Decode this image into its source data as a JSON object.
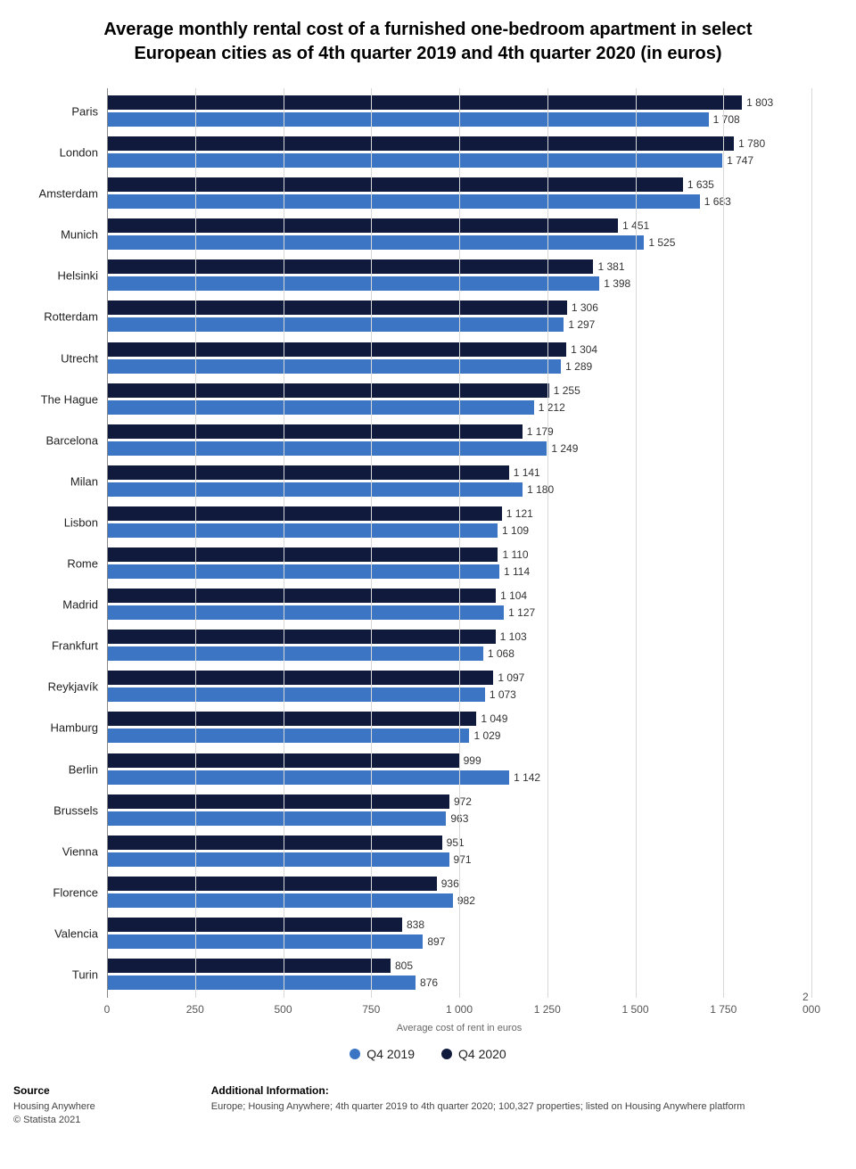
{
  "title": "Average monthly rental cost of a furnished one-bedroom apartment in select European cities as of 4th quarter 2019 and 4th quarter 2020 (in euros)",
  "chart": {
    "type": "bar",
    "orientation": "horizontal",
    "x_axis_title": "Average cost of rent in euros",
    "x_max": 2000,
    "x_ticks": [
      0,
      250,
      500,
      750,
      1000,
      1250,
      1500,
      1750,
      2000
    ],
    "x_tick_labels": [
      "0",
      "250",
      "500",
      "750",
      "1 000",
      "1 250",
      "1 500",
      "1 750",
      "2 000"
    ],
    "series": [
      {
        "name": "Q4 2020",
        "color": "#0f1a3c"
      },
      {
        "name": "Q4 2019",
        "color": "#3b75c4"
      }
    ],
    "legend_order": [
      "Q4 2019",
      "Q4 2020"
    ],
    "grid_color": "#d8d8d8",
    "label_fontsize": 12,
    "background_color": "#ffffff",
    "cities": [
      {
        "name": "Paris",
        "q4_2020": 1803,
        "q4_2019": 1708
      },
      {
        "name": "London",
        "q4_2020": 1780,
        "q4_2019": 1747
      },
      {
        "name": "Amsterdam",
        "q4_2020": 1635,
        "q4_2019": 1683
      },
      {
        "name": "Munich",
        "q4_2020": 1451,
        "q4_2019": 1525
      },
      {
        "name": "Helsinki",
        "q4_2020": 1381,
        "q4_2019": 1398
      },
      {
        "name": "Rotterdam",
        "q4_2020": 1306,
        "q4_2019": 1297
      },
      {
        "name": "Utrecht",
        "q4_2020": 1304,
        "q4_2019": 1289
      },
      {
        "name": "The Hague",
        "q4_2020": 1255,
        "q4_2019": 1212
      },
      {
        "name": "Barcelona",
        "q4_2020": 1179,
        "q4_2019": 1249
      },
      {
        "name": "Milan",
        "q4_2020": 1141,
        "q4_2019": 1180
      },
      {
        "name": "Lisbon",
        "q4_2020": 1121,
        "q4_2019": 1109
      },
      {
        "name": "Rome",
        "q4_2020": 1110,
        "q4_2019": 1114
      },
      {
        "name": "Madrid",
        "q4_2020": 1104,
        "q4_2019": 1127
      },
      {
        "name": "Frankfurt",
        "q4_2020": 1103,
        "q4_2019": 1068
      },
      {
        "name": "Reykjavík",
        "q4_2020": 1097,
        "q4_2019": 1073
      },
      {
        "name": "Hamburg",
        "q4_2020": 1049,
        "q4_2019": 1029
      },
      {
        "name": "Berlin",
        "q4_2020": 999,
        "q4_2019": 1142
      },
      {
        "name": "Brussels",
        "q4_2020": 972,
        "q4_2019": 963
      },
      {
        "name": "Vienna",
        "q4_2020": 951,
        "q4_2019": 971
      },
      {
        "name": "Florence",
        "q4_2020": 936,
        "q4_2019": 982
      },
      {
        "name": "Valencia",
        "q4_2020": 838,
        "q4_2019": 897
      },
      {
        "name": "Turin",
        "q4_2020": 805,
        "q4_2019": 876
      }
    ]
  },
  "footer": {
    "source_header": "Source",
    "source_name": "Housing Anywhere",
    "copyright": "© Statista 2021",
    "info_header": "Additional Information:",
    "info_text": "Europe; Housing Anywhere; 4th quarter 2019 to 4th quarter 2020; 100,327 properties; listed on Housing Anywhere platform"
  }
}
